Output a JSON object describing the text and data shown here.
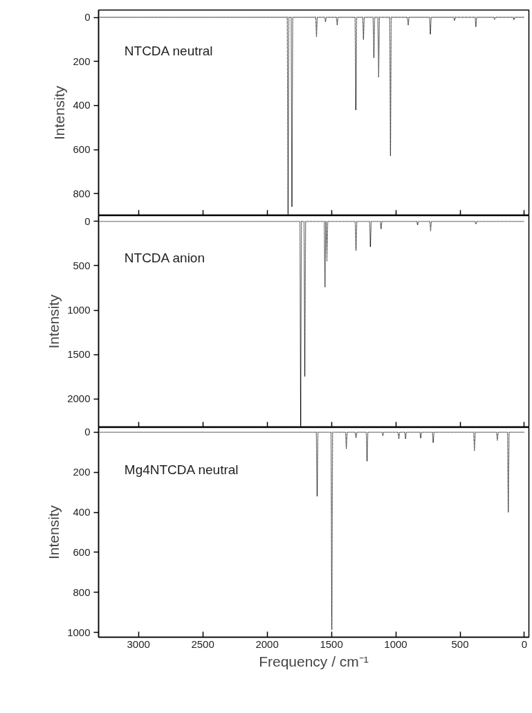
{
  "chart_data": [
    {
      "type": "line",
      "ylabel": "Intensity",
      "annotations": [
        "NTCDA    neutral"
      ],
      "xlim": [
        3310,
        -35
      ],
      "ylim": [
        900,
        -33
      ],
      "xticks": [
        3000,
        2500,
        2000,
        1500,
        1000,
        500,
        0
      ],
      "yticks": [
        0,
        200,
        400,
        600,
        800
      ],
      "tick_labels": "y",
      "grid": false,
      "line_style": "dotted",
      "series": [
        {
          "color": "#000000",
          "x": [
            3300,
            1843,
            1837,
            1831,
            1813,
            1807,
            1801,
            1622,
            1616,
            1610,
            1552,
            1546,
            1540,
            1461,
            1455,
            1449,
            1316,
            1310,
            1304,
            1257,
            1251,
            1245,
            1176,
            1170,
            1164,
            1139,
            1133,
            1127,
            1047,
            1041,
            1035,
            909,
            903,
            897,
            737,
            731,
            725,
            549,
            543,
            537,
            383,
            377,
            371,
            238,
            232,
            226,
            87,
            81,
            75,
            0
          ],
          "values": [
            0,
            0,
            892,
            0,
            0,
            860,
            0,
            0,
            86,
            0,
            0,
            20,
            0,
            0,
            36,
            0,
            0,
            421,
            0,
            0,
            99,
            0,
            0,
            184,
            0,
            0,
            273,
            0,
            0,
            627,
            0,
            0,
            36,
            0,
            0,
            77,
            0,
            0,
            15,
            0,
            0,
            42,
            0,
            0,
            10,
            0,
            0,
            10,
            0,
            0
          ]
        }
      ]
    },
    {
      "type": "line",
      "ylabel": "Intensity",
      "annotations": [
        "NTCDA    anion"
      ],
      "xlim": [
        3310,
        -35
      ],
      "ylim": [
        2320,
        -65
      ],
      "xticks": [
        3000,
        2500,
        2000,
        1500,
        1000,
        500,
        0
      ],
      "yticks": [
        0,
        500,
        1000,
        1500,
        2000
      ],
      "tick_labels": "y",
      "grid": false,
      "line_style": "dotted",
      "series": [
        {
          "color": "#000000",
          "x": [
            3300,
            1745,
            1739,
            1733,
            1713,
            1707,
            1701,
            1556,
            1550,
            1544,
            1541,
            1535,
            1529,
            1315,
            1309,
            1303,
            1203,
            1197,
            1191,
            1120,
            1114,
            1108,
            836,
            830,
            824,
            735,
            729,
            723,
            383,
            377,
            371,
            0
          ],
          "values": [
            0,
            0,
            2306,
            0,
            0,
            1742,
            0,
            0,
            742,
            0,
            0,
            444,
            0,
            0,
            323,
            0,
            0,
            282,
            0,
            0,
            81,
            0,
            0,
            40,
            0,
            0,
            105,
            0,
            0,
            30,
            0,
            0
          ]
        }
      ]
    },
    {
      "type": "line",
      "xlabel": "Frequency / cm⁻¹",
      "ylabel": "Intensity",
      "annotations": [
        "Mg4NTCDA    neutral"
      ],
      "xlim": [
        3310,
        -35
      ],
      "ylim": [
        1024,
        -24
      ],
      "xticks": [
        3000,
        2500,
        2000,
        1500,
        1000,
        500,
        0
      ],
      "yticks": [
        0,
        200,
        400,
        600,
        800,
        1000
      ],
      "grid": false,
      "line_style": "dotted",
      "series": [
        {
          "color": "#000000",
          "x": [
            3300,
            1617,
            1611,
            1605,
            1503,
            1497,
            1491,
            1390,
            1384,
            1378,
            1315,
            1309,
            1303,
            1229,
            1223,
            1217,
            1106,
            1100,
            1094,
            982,
            976,
            970,
            930,
            924,
            918,
            812,
            806,
            800,
            715,
            709,
            703,
            394,
            388,
            382,
            216,
            210,
            204,
            131,
            125,
            119,
            0
          ],
          "values": [
            0,
            0,
            318,
            0,
            0,
            987,
            0,
            0,
            83,
            0,
            0,
            28,
            0,
            0,
            145,
            0,
            0,
            15,
            0,
            0,
            31,
            0,
            0,
            31,
            0,
            0,
            28,
            0,
            0,
            52,
            0,
            0,
            93,
            0,
            0,
            42,
            0,
            0,
            398,
            0,
            0
          ]
        }
      ]
    }
  ]
}
